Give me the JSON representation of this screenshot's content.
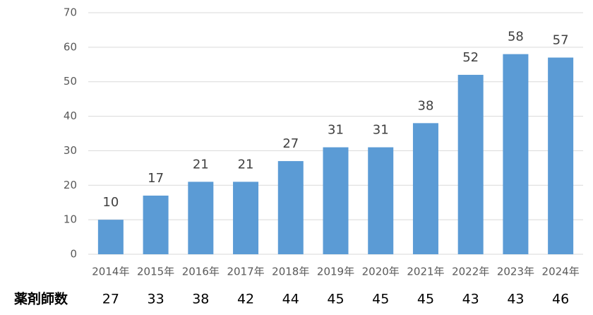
{
  "chart_data": {
    "type": "bar",
    "categories": [
      "2014年",
      "2015年",
      "2016年",
      "2017年",
      "2018年",
      "2019年",
      "2020年",
      "2021年",
      "2022年",
      "2023年",
      "2024年"
    ],
    "values": [
      10,
      17,
      21,
      21,
      27,
      31,
      31,
      38,
      52,
      58,
      57
    ],
    "color": "#5b9bd5",
    "ylim": [
      0,
      70
    ],
    "yticks": [
      0,
      10,
      20,
      30,
      40,
      50,
      60,
      70
    ],
    "grid": true
  },
  "table": {
    "label": "薬剤師数",
    "values": [
      27,
      33,
      38,
      42,
      44,
      45,
      45,
      45,
      43,
      43,
      46
    ]
  }
}
